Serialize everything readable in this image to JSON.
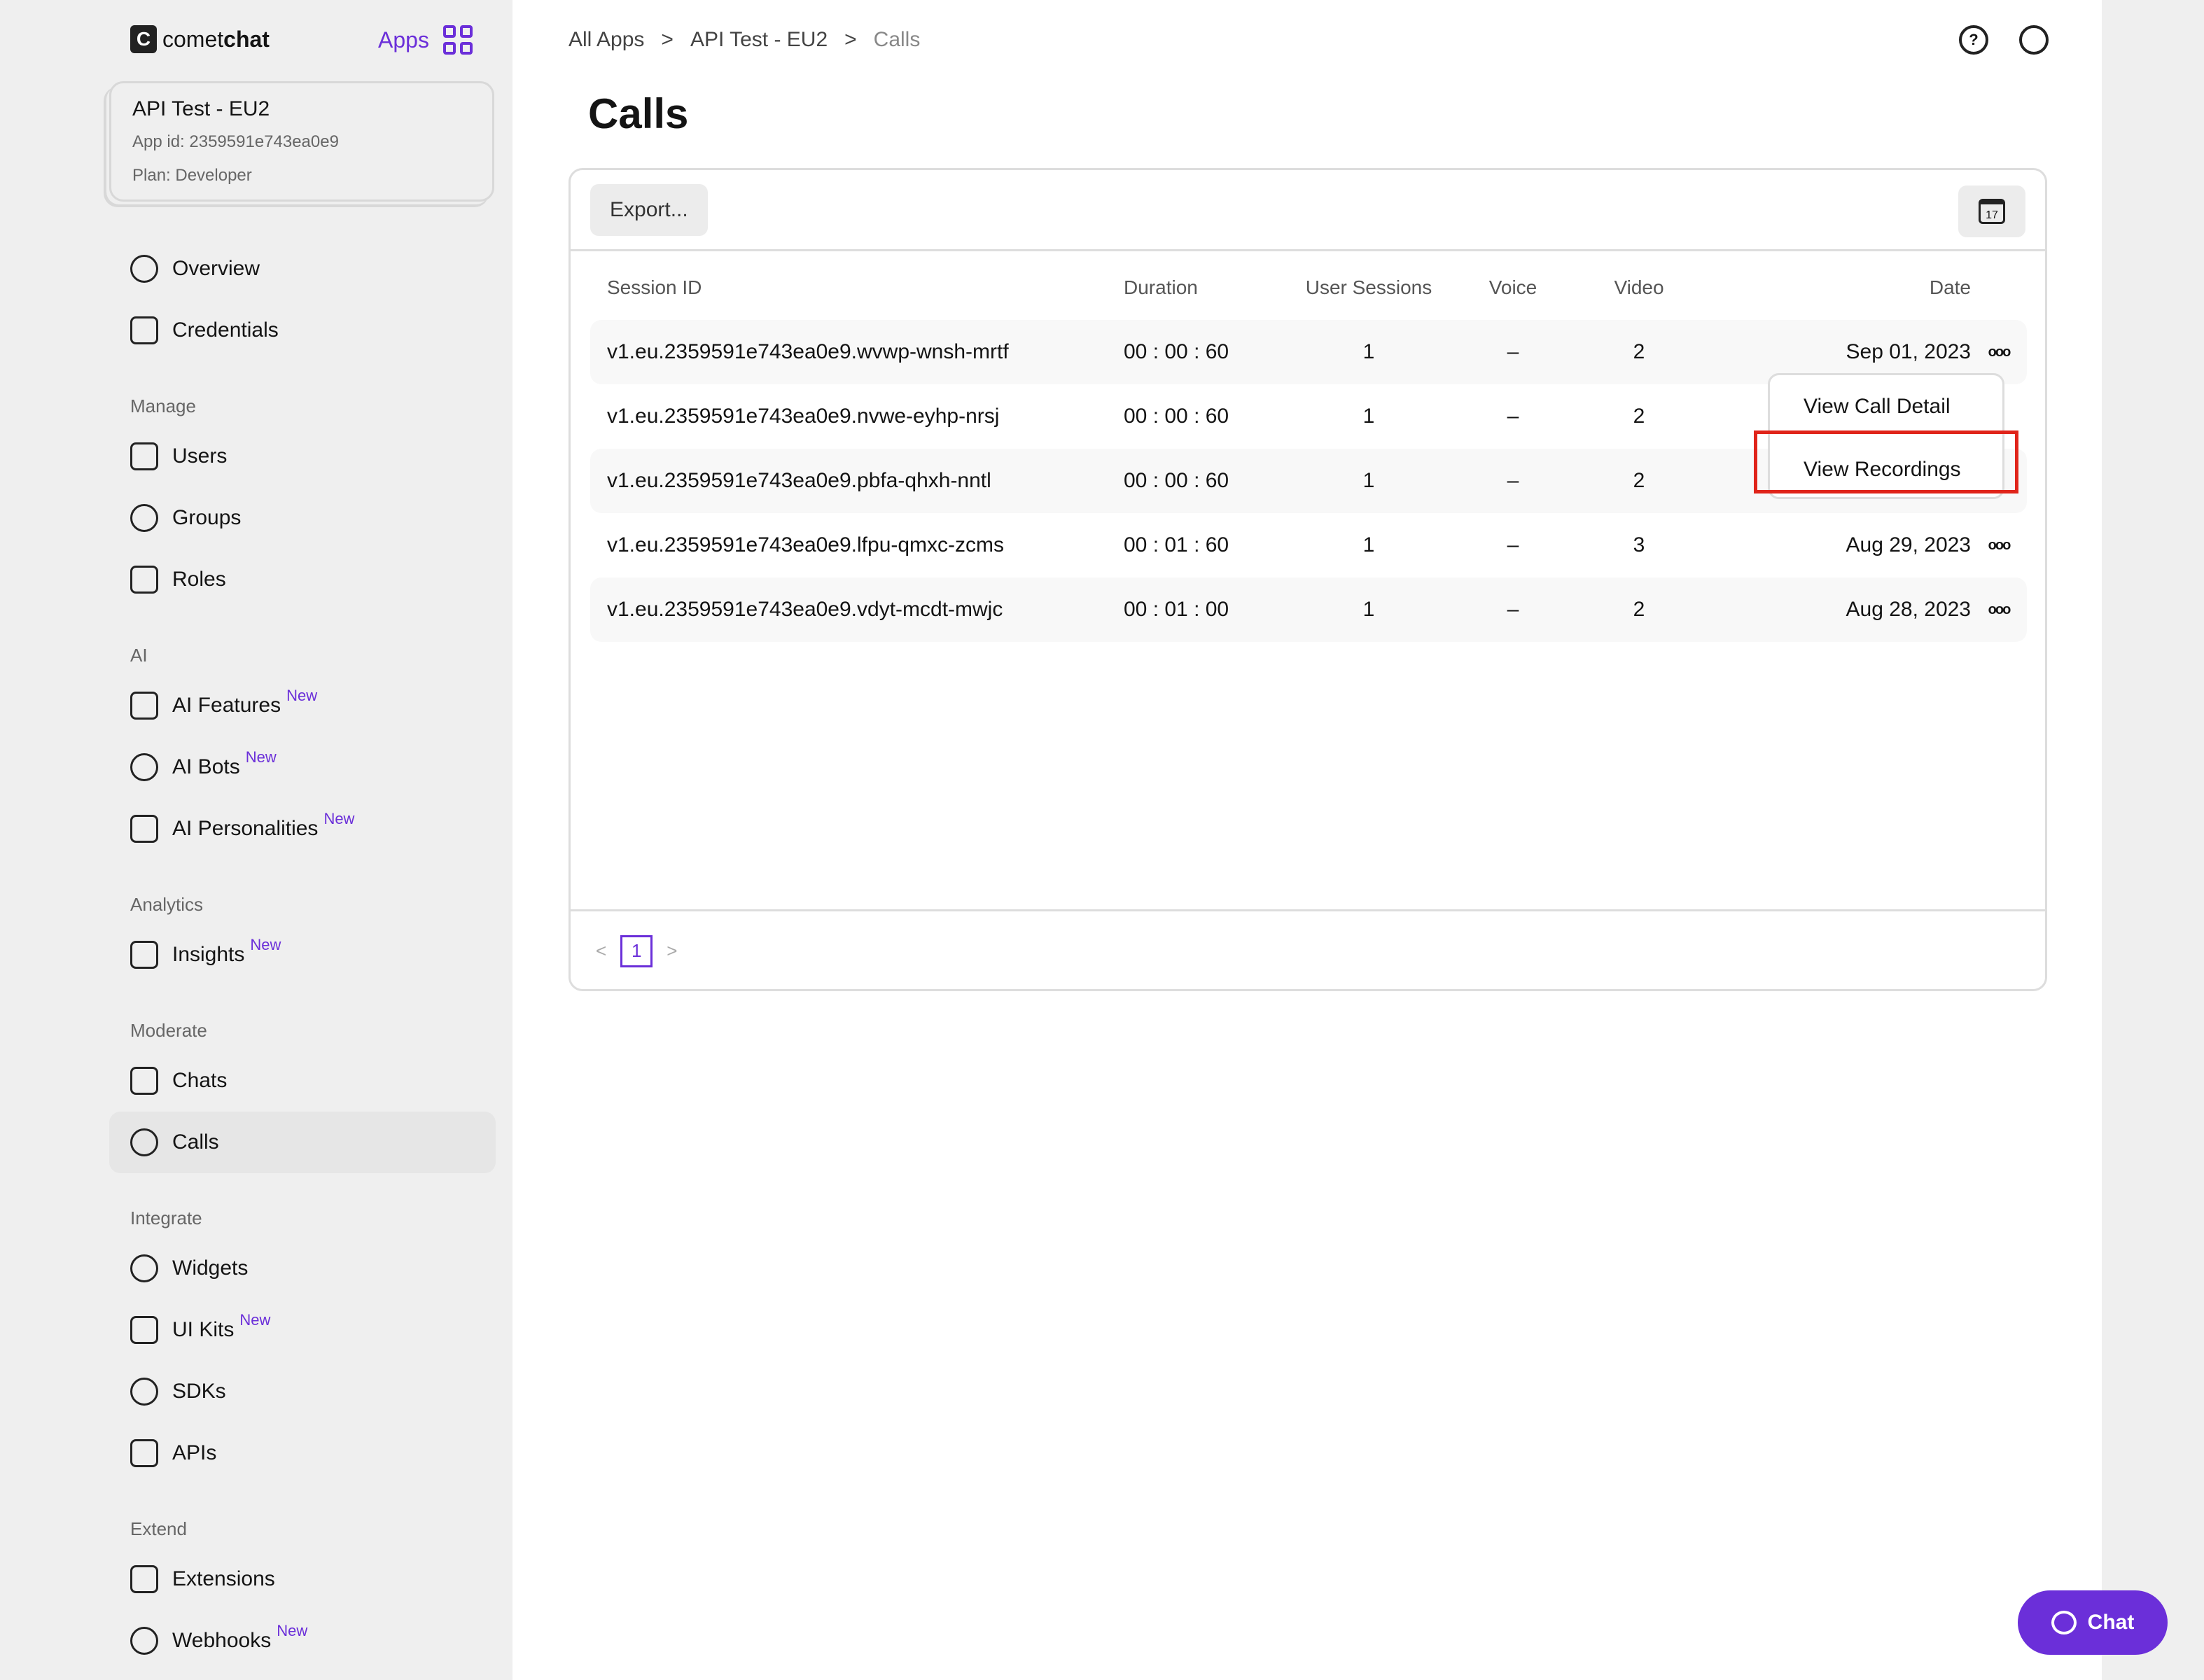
{
  "brand": {
    "logo_text_light": "comet",
    "logo_text_bold": "chat",
    "apps_label": "Apps"
  },
  "app": {
    "name": "API Test - EU2",
    "app_id": "App id: 2359591e743ea0e9",
    "plan": "Plan: Developer"
  },
  "sidebar": {
    "top": [
      {
        "label": "Overview",
        "icon": "dashboard-icon"
      },
      {
        "label": "Credentials",
        "icon": "key-icon"
      }
    ],
    "sections": [
      {
        "title": "Manage",
        "items": [
          {
            "label": "Users"
          },
          {
            "label": "Groups"
          },
          {
            "label": "Roles"
          }
        ]
      },
      {
        "title": "AI",
        "items": [
          {
            "label": "AI Features",
            "badge": "New"
          },
          {
            "label": "AI Bots",
            "badge": "New"
          },
          {
            "label": "AI Personalities",
            "badge": "New"
          }
        ]
      },
      {
        "title": "Analytics",
        "items": [
          {
            "label": "Insights",
            "badge": "New"
          }
        ]
      },
      {
        "title": "Moderate",
        "items": [
          {
            "label": "Chats"
          },
          {
            "label": "Calls",
            "active": true
          }
        ]
      },
      {
        "title": "Integrate",
        "items": [
          {
            "label": "Widgets"
          },
          {
            "label": "UI Kits",
            "badge": "New"
          },
          {
            "label": "SDKs"
          },
          {
            "label": "APIs"
          }
        ]
      },
      {
        "title": "Extend",
        "items": [
          {
            "label": "Extensions"
          },
          {
            "label": "Webhooks",
            "badge": "New"
          }
        ]
      }
    ]
  },
  "breadcrumb": [
    "All Apps",
    ">",
    "API Test - EU2",
    ">",
    "Calls"
  ],
  "page_title": "Calls",
  "toolbar": {
    "export_label": "Export...",
    "calendar_day": "17"
  },
  "table": {
    "headers": [
      "Session ID",
      "Duration",
      "User Sessions",
      "Voice",
      "Video",
      "Date"
    ],
    "rows": [
      [
        "v1.eu.2359591e743ea0e9.wvwp-wnsh-mrtf",
        "00 : 00 : 60",
        "1",
        "–",
        "2",
        "Sep 01, 2023"
      ],
      [
        "v1.eu.2359591e743ea0e9.nvwe-eyhp-nrsj",
        "00 : 00 : 60",
        "1",
        "–",
        "2",
        ""
      ],
      [
        "v1.eu.2359591e743ea0e9.pbfa-qhxh-nntl",
        "00 : 00 : 60",
        "1",
        "–",
        "2",
        ""
      ],
      [
        "v1.eu.2359591e743ea0e9.lfpu-qmxc-zcms",
        "00 : 01 : 60",
        "1",
        "–",
        "3",
        "Aug 29, 2023"
      ],
      [
        "v1.eu.2359591e743ea0e9.vdyt-mcdt-mwjc",
        "00 : 01 : 00",
        "1",
        "–",
        "2",
        "Aug 28, 2023"
      ]
    ],
    "more_glyph": "ooo"
  },
  "row_menu": {
    "items": [
      "View Call Detail",
      "View Recordings"
    ],
    "highlighted": "View Recordings",
    "highlight_color": "#e0241a"
  },
  "pagination": {
    "prev": "<",
    "page": "1",
    "next": ">"
  },
  "chat_button": {
    "label": "Chat"
  },
  "colors": {
    "accent": "#6b2fd9",
    "sidebar_bg": "#efefef"
  }
}
